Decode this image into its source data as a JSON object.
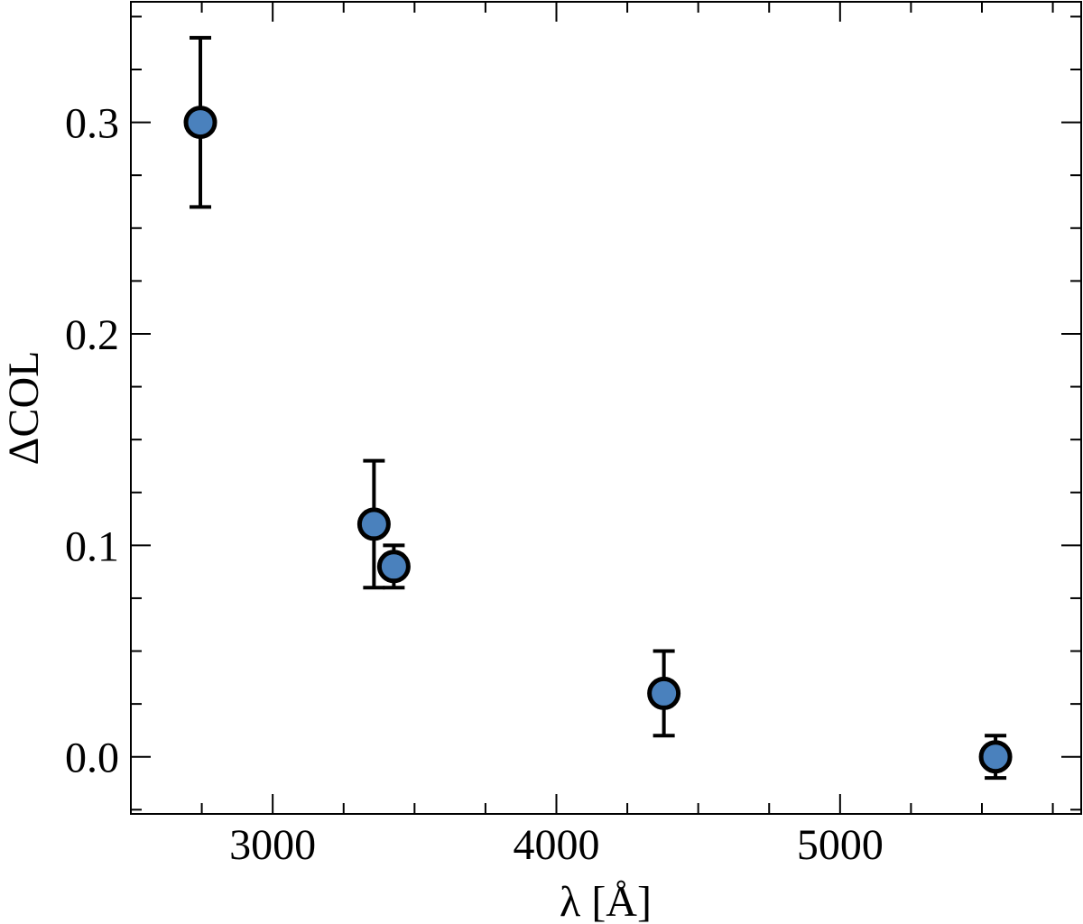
{
  "chart_data": {
    "type": "errorbar",
    "xlabel": "λ [Å]",
    "ylabel": "ΔCOL",
    "x": [
      2745,
      3357,
      3427,
      4379,
      5548
    ],
    "values": [
      0.3,
      0.11,
      0.09,
      0.03,
      0.0
    ],
    "errors": [
      0.04,
      0.03,
      0.01,
      0.02,
      0.01
    ],
    "color": "#4a81bd",
    "xlim": [
      2500,
      5850
    ],
    "ylim": [
      -0.027,
      0.357
    ],
    "xticks": [
      3000,
      4000,
      5000
    ],
    "yticks": [
      {
        "value": 0,
        "label": "0.0"
      },
      0.1,
      0.2,
      0.3
    ],
    "xminorticks": [
      2750,
      3250,
      3500,
      3750,
      4250,
      4500,
      4750,
      5250,
      5500,
      5750
    ],
    "yminorticks": [
      -0.025,
      0.025,
      0.05,
      0.075,
      0.125,
      0.15,
      0.175,
      0.225,
      0.25,
      0.275,
      0.325,
      0.35
    ]
  }
}
